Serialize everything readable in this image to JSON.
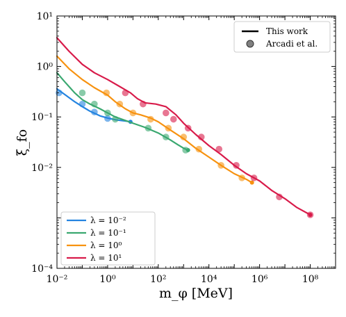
{
  "chart_data": {
    "type": "line",
    "title": "",
    "xlabel": "m_φ  [MeV]",
    "ylabel": "ξ_fo",
    "x_scale": "log",
    "y_scale": "log",
    "xlim": [
      0.01,
      1000000000
    ],
    "ylim": [
      0.0001,
      10
    ],
    "x_ticks": [
      {
        "value": 0.01,
        "label": "10⁻²"
      },
      {
        "value": 1,
        "label": "10⁰"
      },
      {
        "value": 100,
        "label": "10²"
      },
      {
        "value": 10000,
        "label": "10⁴"
      },
      {
        "value": 1000000,
        "label": "10⁶"
      },
      {
        "value": 100000000,
        "label": "10⁸"
      }
    ],
    "y_ticks": [
      {
        "value": 0.0001,
        "label": "10⁻⁴"
      },
      {
        "value": 0.01,
        "label": "10⁻²"
      },
      {
        "value": 0.1,
        "label": "10⁻¹"
      },
      {
        "value": 1,
        "label": "10⁰"
      },
      {
        "value": 10,
        "label": "10¹"
      }
    ],
    "grid": false,
    "style_legend": {
      "placement": "top-right",
      "entries": [
        {
          "label": "This work",
          "marker": "line",
          "color": "#000000"
        },
        {
          "label": "Arcadi et al.",
          "marker": "dot",
          "color": "#555555"
        }
      ]
    },
    "series_legend_placement": "bottom-left",
    "series": [
      {
        "name": "λ = 10⁻²",
        "color": "#2484e0",
        "line": [
          [
            0.01,
            0.36
          ],
          [
            0.02,
            0.28
          ],
          [
            0.05,
            0.2
          ],
          [
            0.1,
            0.16
          ],
          [
            0.2,
            0.13
          ],
          [
            0.5,
            0.105
          ],
          [
            1,
            0.095
          ],
          [
            2,
            0.088
          ],
          [
            4,
            0.084
          ],
          [
            6,
            0.082
          ],
          [
            8,
            0.08
          ]
        ],
        "points": [
          [
            0.012,
            0.3
          ],
          [
            0.1,
            0.18
          ],
          [
            0.3,
            0.125
          ],
          [
            1,
            0.093
          ]
        ]
      },
      {
        "name": "λ = 10⁻¹",
        "color": "#3aa870",
        "line": [
          [
            0.01,
            0.75
          ],
          [
            0.02,
            0.5
          ],
          [
            0.05,
            0.3
          ],
          [
            0.1,
            0.22
          ],
          [
            0.2,
            0.18
          ],
          [
            0.5,
            0.145
          ],
          [
            1,
            0.12
          ],
          [
            2,
            0.1
          ],
          [
            5,
            0.085
          ],
          [
            10,
            0.075
          ],
          [
            30,
            0.062
          ],
          [
            100,
            0.048
          ],
          [
            300,
            0.035
          ],
          [
            600,
            0.028
          ],
          [
            1000,
            0.024
          ],
          [
            1500,
            0.022
          ]
        ],
        "points": [
          [
            0.1,
            0.3
          ],
          [
            0.3,
            0.18
          ],
          [
            1,
            0.12
          ],
          [
            2,
            0.09
          ],
          [
            40,
            0.06
          ],
          [
            200,
            0.04
          ],
          [
            1200,
            0.022
          ]
        ]
      },
      {
        "name": "λ = 10⁰",
        "color": "#f7920f",
        "line": [
          [
            0.01,
            1.6
          ],
          [
            0.03,
            0.9
          ],
          [
            0.1,
            0.55
          ],
          [
            0.3,
            0.38
          ],
          [
            1,
            0.27
          ],
          [
            2,
            0.2
          ],
          [
            5,
            0.145
          ],
          [
            10,
            0.12
          ],
          [
            20,
            0.11
          ],
          [
            50,
            0.095
          ],
          [
            100,
            0.08
          ],
          [
            300,
            0.055
          ],
          [
            1000,
            0.037
          ],
          [
            3000,
            0.024
          ],
          [
            10000,
            0.016
          ],
          [
            30000,
            0.011
          ],
          [
            100000,
            0.0075
          ],
          [
            300000,
            0.0058
          ],
          [
            500000,
            0.005
          ]
        ],
        "points": [
          [
            0.9,
            0.3
          ],
          [
            3,
            0.18
          ],
          [
            10,
            0.12
          ],
          [
            50,
            0.09
          ],
          [
            250,
            0.06
          ],
          [
            1000,
            0.04
          ],
          [
            4000,
            0.023
          ],
          [
            30000,
            0.011
          ],
          [
            200000,
            0.0062
          ]
        ]
      },
      {
        "name": "λ = 10¹",
        "color": "#d81b4a",
        "line": [
          [
            0.01,
            3.7
          ],
          [
            0.03,
            2.0
          ],
          [
            0.1,
            1.1
          ],
          [
            0.3,
            0.75
          ],
          [
            1,
            0.55
          ],
          [
            3,
            0.4
          ],
          [
            8,
            0.3
          ],
          [
            15,
            0.23
          ],
          [
            30,
            0.19
          ],
          [
            80,
            0.18
          ],
          [
            200,
            0.16
          ],
          [
            500,
            0.11
          ],
          [
            1000,
            0.075
          ],
          [
            3000,
            0.045
          ],
          [
            10000,
            0.027
          ],
          [
            30000,
            0.018
          ],
          [
            100000,
            0.011
          ],
          [
            300000,
            0.0075
          ],
          [
            1000000,
            0.0054
          ],
          [
            3000000,
            0.0035
          ],
          [
            10000000,
            0.0024
          ],
          [
            30000000,
            0.0016
          ],
          [
            100000000,
            0.00115
          ]
        ],
        "points": [
          [
            5,
            0.3
          ],
          [
            25,
            0.18
          ],
          [
            200,
            0.12
          ],
          [
            400,
            0.09
          ],
          [
            1500,
            0.06
          ],
          [
            5000,
            0.04
          ],
          [
            25000,
            0.023
          ],
          [
            120000,
            0.011
          ],
          [
            600000,
            0.0062
          ],
          [
            6000000,
            0.0026
          ],
          [
            100000000,
            0.00115
          ]
        ]
      }
    ]
  }
}
